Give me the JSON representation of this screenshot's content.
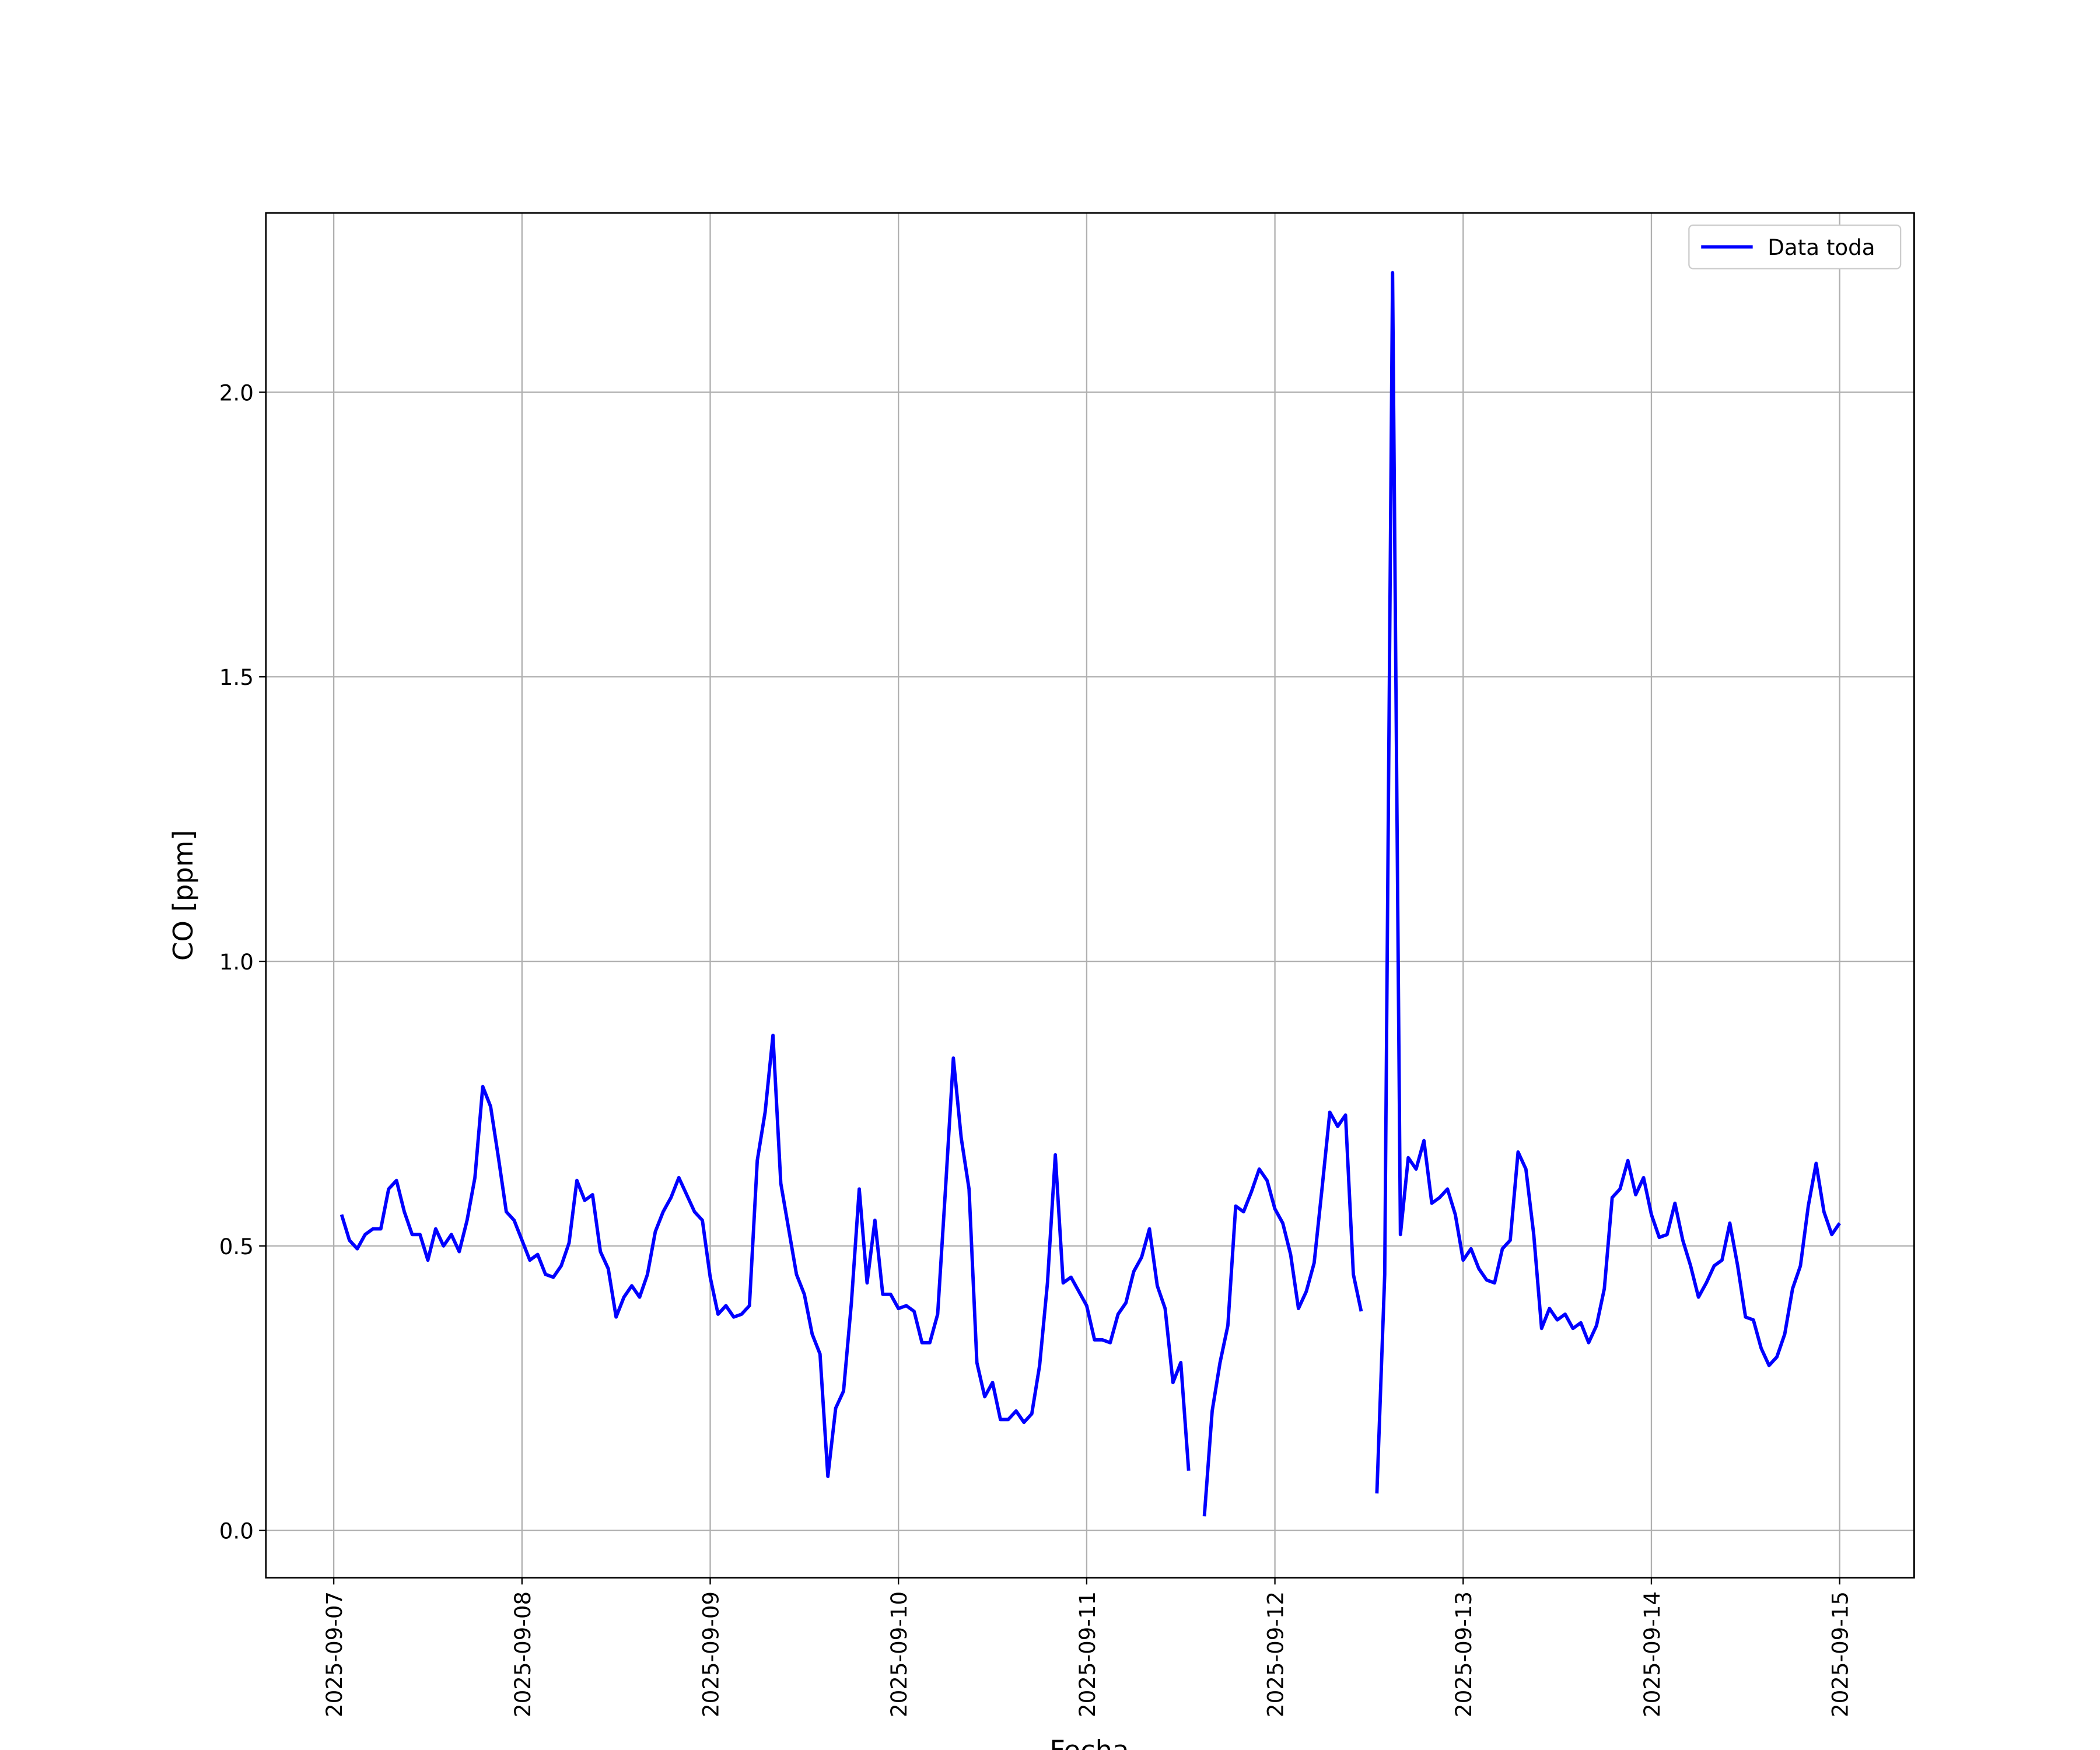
{
  "chart_data": {
    "type": "line",
    "xlabel": "Fecha",
    "ylabel": "CO [ppm]",
    "x": [
      "2025-09-07T01:00",
      "2025-09-07T02:00",
      "2025-09-07T03:00",
      "2025-09-07T04:00",
      "2025-09-07T05:00",
      "2025-09-07T06:00",
      "2025-09-07T07:00",
      "2025-09-07T08:00",
      "2025-09-07T09:00",
      "2025-09-07T10:00",
      "2025-09-07T11:00",
      "2025-09-07T12:00",
      "2025-09-07T13:00",
      "2025-09-07T14:00",
      "2025-09-07T15:00",
      "2025-09-07T16:00",
      "2025-09-07T17:00",
      "2025-09-07T18:00",
      "2025-09-07T19:00",
      "2025-09-07T20:00",
      "2025-09-07T21:00",
      "2025-09-07T22:00",
      "2025-09-07T23:00",
      "2025-09-08T00:00",
      "2025-09-08T01:00",
      "2025-09-08T02:00",
      "2025-09-08T03:00",
      "2025-09-08T04:00",
      "2025-09-08T05:00",
      "2025-09-08T06:00",
      "2025-09-08T07:00",
      "2025-09-08T08:00",
      "2025-09-08T09:00",
      "2025-09-08T10:00",
      "2025-09-08T11:00",
      "2025-09-08T12:00",
      "2025-09-08T13:00",
      "2025-09-08T14:00",
      "2025-09-08T15:00",
      "2025-09-08T16:00",
      "2025-09-08T17:00",
      "2025-09-08T18:00",
      "2025-09-08T19:00",
      "2025-09-08T20:00",
      "2025-09-08T21:00",
      "2025-09-08T22:00",
      "2025-09-08T23:00",
      "2025-09-09T00:00",
      "2025-09-09T01:00",
      "2025-09-09T02:00",
      "2025-09-09T03:00",
      "2025-09-09T04:00",
      "2025-09-09T05:00",
      "2025-09-09T06:00",
      "2025-09-09T07:00",
      "2025-09-09T08:00",
      "2025-09-09T09:00",
      "2025-09-09T10:00",
      "2025-09-09T11:00",
      "2025-09-09T12:00",
      "2025-09-09T13:00",
      "2025-09-09T14:00",
      "2025-09-09T15:00",
      "2025-09-09T16:00",
      "2025-09-09T17:00",
      "2025-09-09T18:00",
      "2025-09-09T19:00",
      "2025-09-09T20:00",
      "2025-09-09T21:00",
      "2025-09-09T22:00",
      "2025-09-09T23:00",
      "2025-09-10T00:00",
      "2025-09-10T01:00",
      "2025-09-10T02:00",
      "2025-09-10T03:00",
      "2025-09-10T04:00",
      "2025-09-10T05:00",
      "2025-09-10T06:00",
      "2025-09-10T07:00",
      "2025-09-10T08:00",
      "2025-09-10T09:00",
      "2025-09-10T10:00",
      "2025-09-10T11:00",
      "2025-09-10T12:00",
      "2025-09-10T13:00",
      "2025-09-10T14:00",
      "2025-09-10T15:00",
      "2025-09-10T16:00",
      "2025-09-10T17:00",
      "2025-09-10T18:00",
      "2025-09-10T19:00",
      "2025-09-10T20:00",
      "2025-09-10T21:00",
      "2025-09-10T22:00",
      "2025-09-10T23:00",
      "2025-09-11T00:00",
      "2025-09-11T01:00",
      "2025-09-11T02:00",
      "2025-09-11T03:00",
      "2025-09-11T04:00",
      "2025-09-11T05:00",
      "2025-09-11T06:00",
      "2025-09-11T07:00",
      "2025-09-11T08:00",
      "2025-09-11T09:00",
      "2025-09-11T10:00",
      "2025-09-11T11:00",
      "2025-09-11T12:00",
      "2025-09-11T13:00",
      "2025-09-11T14:00",
      "2025-09-11T15:00",
      "2025-09-11T16:00",
      "2025-09-11T17:00",
      "2025-09-11T18:00",
      "2025-09-11T19:00",
      "2025-09-11T20:00",
      "2025-09-11T21:00",
      "2025-09-11T22:00",
      "2025-09-11T23:00",
      "2025-09-12T00:00",
      "2025-09-12T01:00",
      "2025-09-12T02:00",
      "2025-09-12T03:00",
      "2025-09-12T04:00",
      "2025-09-12T05:00",
      "2025-09-12T06:00",
      "2025-09-12T07:00",
      "2025-09-12T08:00",
      "2025-09-12T09:00",
      "2025-09-12T10:00",
      "2025-09-12T11:00",
      "2025-09-12T12:00",
      "2025-09-12T13:00",
      "2025-09-12T14:00",
      "2025-09-12T15:00",
      "2025-09-12T16:00",
      "2025-09-12T17:00",
      "2025-09-12T18:00",
      "2025-09-12T19:00",
      "2025-09-12T20:00",
      "2025-09-12T21:00",
      "2025-09-12T22:00",
      "2025-09-12T23:00",
      "2025-09-13T00:00",
      "2025-09-13T01:00",
      "2025-09-13T02:00",
      "2025-09-13T03:00",
      "2025-09-13T04:00",
      "2025-09-13T05:00",
      "2025-09-13T06:00",
      "2025-09-13T07:00",
      "2025-09-13T08:00",
      "2025-09-13T09:00",
      "2025-09-13T10:00",
      "2025-09-13T11:00",
      "2025-09-13T12:00",
      "2025-09-13T13:00",
      "2025-09-13T14:00",
      "2025-09-13T15:00",
      "2025-09-13T16:00",
      "2025-09-13T17:00",
      "2025-09-13T18:00",
      "2025-09-13T19:00",
      "2025-09-13T20:00",
      "2025-09-13T21:00",
      "2025-09-13T22:00",
      "2025-09-13T23:00",
      "2025-09-14T00:00",
      "2025-09-14T01:00",
      "2025-09-14T02:00",
      "2025-09-14T03:00",
      "2025-09-14T04:00",
      "2025-09-14T05:00",
      "2025-09-14T06:00",
      "2025-09-14T07:00",
      "2025-09-14T08:00",
      "2025-09-14T09:00",
      "2025-09-14T10:00",
      "2025-09-14T11:00",
      "2025-09-14T12:00",
      "2025-09-14T13:00",
      "2025-09-14T14:00",
      "2025-09-14T15:00",
      "2025-09-14T16:00",
      "2025-09-14T17:00",
      "2025-09-14T18:00",
      "2025-09-14T19:00",
      "2025-09-14T20:00",
      "2025-09-14T21:00",
      "2025-09-14T22:00",
      "2025-09-14T23:00",
      "2025-09-15T00:00"
    ],
    "series": [
      {
        "name": "Data toda",
        "color": "#0000ff",
        "values": [
          0.555,
          0.51,
          0.495,
          0.52,
          0.53,
          0.53,
          0.6,
          0.615,
          0.56,
          0.52,
          0.52,
          0.475,
          0.53,
          0.5,
          0.52,
          0.49,
          0.545,
          0.62,
          0.78,
          0.745,
          0.655,
          0.56,
          0.545,
          0.51,
          0.475,
          0.485,
          0.45,
          0.445,
          0.465,
          0.505,
          0.615,
          0.58,
          0.59,
          0.49,
          0.46,
          0.375,
          0.41,
          0.43,
          0.41,
          0.45,
          0.525,
          0.56,
          0.585,
          0.62,
          0.59,
          0.56,
          0.545,
          0.445,
          0.38,
          0.395,
          0.375,
          0.38,
          0.395,
          0.65,
          0.735,
          0.87,
          0.61,
          0.53,
          0.45,
          0.415,
          0.345,
          0.31,
          0.095,
          0.215,
          0.245,
          0.4,
          0.6,
          0.435,
          0.545,
          0.415,
          0.415,
          0.39,
          0.395,
          0.385,
          0.33,
          0.33,
          0.38,
          0.6,
          0.83,
          0.69,
          0.6,
          0.295,
          0.235,
          0.26,
          0.195,
          0.195,
          0.21,
          0.19,
          0.205,
          0.29,
          0.435,
          0.66,
          0.435,
          0.445,
          0.42,
          0.395,
          0.335,
          0.335,
          0.33,
          0.38,
          0.4,
          0.455,
          0.48,
          0.53,
          0.43,
          0.39,
          0.26,
          0.295,
          0.105,
          null,
          0.025,
          0.21,
          0.295,
          0.36,
          0.57,
          0.56,
          0.595,
          0.635,
          0.615,
          0.565,
          0.54,
          0.485,
          0.39,
          0.42,
          0.47,
          0.6,
          0.735,
          0.71,
          0.73,
          0.45,
          0.385,
          null,
          0.065,
          0.45,
          2.21,
          0.52,
          0.655,
          0.635,
          0.685,
          0.575,
          0.585,
          0.6,
          0.555,
          0.475,
          0.495,
          0.46,
          0.44,
          0.435,
          0.495,
          0.51,
          0.665,
          0.635,
          0.52,
          0.355,
          0.39,
          0.37,
          0.38,
          0.355,
          0.365,
          0.33,
          0.36,
          0.425,
          0.585,
          0.6,
          0.65,
          0.59,
          0.62,
          0.555,
          0.515,
          0.52,
          0.575,
          0.51,
          0.465,
          0.41,
          0.435,
          0.465,
          0.475,
          0.54,
          0.465,
          0.375,
          0.37,
          0.32,
          0.29,
          0.305,
          0.345,
          0.425,
          0.465,
          0.57,
          0.645,
          0.56,
          0.52,
          0.54
        ]
      }
    ],
    "xlim": [
      "2025-09-06T15:21",
      "2025-09-15T09:30"
    ],
    "xticks": [
      "2025-09-07",
      "2025-09-08",
      "2025-09-09",
      "2025-09-10",
      "2025-09-11",
      "2025-09-12",
      "2025-09-13",
      "2025-09-14",
      "2025-09-15"
    ],
    "ylim": [
      -0.083,
      2.315
    ],
    "yticks": [
      {
        "value": 0,
        "label": "0.0"
      },
      0.5,
      {
        "value": 1,
        "label": "1.0"
      },
      1.5,
      {
        "value": 2,
        "label": "2.0"
      }
    ],
    "grid": true,
    "legend": "upper right"
  }
}
